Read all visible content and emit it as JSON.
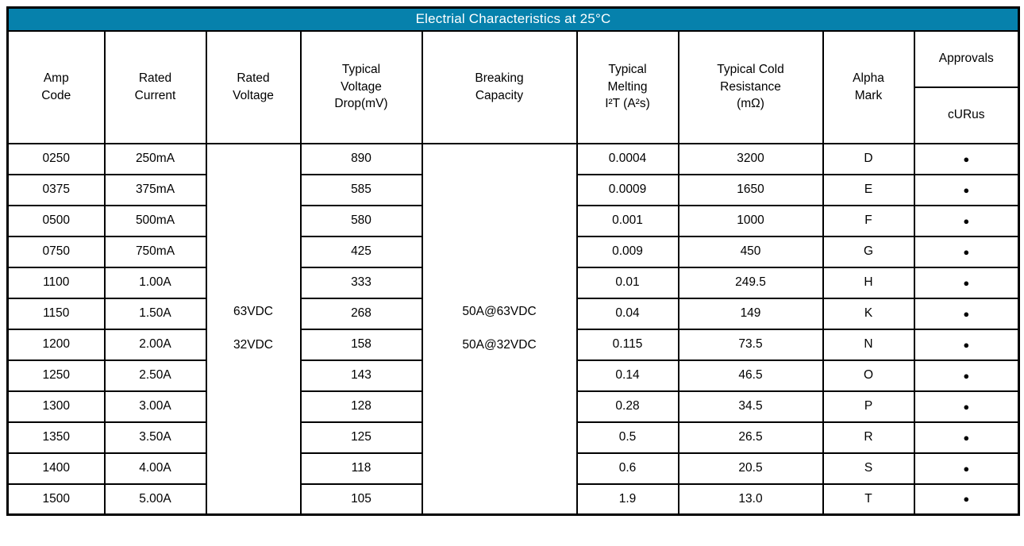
{
  "title": "Electrial Characteristics at 25°C",
  "colors": {
    "title_bar_bg": "#0681AC",
    "title_bar_text": "#FFFFFF",
    "border": "#000000",
    "body_text": "#000000"
  },
  "columns": {
    "amp_code": "Amp\nCode",
    "rated_current": "Rated\nCurrent",
    "rated_voltage": "Rated\nVoltage",
    "voltage_drop": "Typical\nVoltage\nDrop(mV)",
    "breaking_capacity": "Breaking\nCapacity",
    "melting_i2t": "Typical\nMelting\nI²T (A²s)",
    "cold_resistance": "Typical Cold\nResistance\n(mΩ)",
    "alpha_mark": "Alpha\nMark",
    "approvals": "Approvals",
    "curus": "cURus"
  },
  "merged_cells": {
    "rated_voltage": "63VDC\n32VDC",
    "breaking_capacity": "50A@63VDC\n50A@32VDC"
  },
  "approval_bullet_glyph": "●",
  "rows": [
    {
      "amp_code": "0250",
      "rated_current": "250mA",
      "voltage_drop": "890",
      "melting_i2t": "0.0004",
      "cold_resistance": "3200",
      "alpha_mark": "D",
      "curus_approved": true
    },
    {
      "amp_code": "0375",
      "rated_current": "375mA",
      "voltage_drop": "585",
      "melting_i2t": "0.0009",
      "cold_resistance": "1650",
      "alpha_mark": "E",
      "curus_approved": true
    },
    {
      "amp_code": "0500",
      "rated_current": "500mA",
      "voltage_drop": "580",
      "melting_i2t": "0.001",
      "cold_resistance": "1000",
      "alpha_mark": "F",
      "curus_approved": true
    },
    {
      "amp_code": "0750",
      "rated_current": "750mA",
      "voltage_drop": "425",
      "melting_i2t": "0.009",
      "cold_resistance": "450",
      "alpha_mark": "G",
      "curus_approved": true
    },
    {
      "amp_code": "1100",
      "rated_current": "1.00A",
      "voltage_drop": "333",
      "melting_i2t": "0.01",
      "cold_resistance": "249.5",
      "alpha_mark": "H",
      "curus_approved": true
    },
    {
      "amp_code": "1150",
      "rated_current": "1.50A",
      "voltage_drop": "268",
      "melting_i2t": "0.04",
      "cold_resistance": "149",
      "alpha_mark": "K",
      "curus_approved": true
    },
    {
      "amp_code": "1200",
      "rated_current": "2.00A",
      "voltage_drop": "158",
      "melting_i2t": "0.115",
      "cold_resistance": "73.5",
      "alpha_mark": "N",
      "curus_approved": true
    },
    {
      "amp_code": "1250",
      "rated_current": "2.50A",
      "voltage_drop": "143",
      "melting_i2t": "0.14",
      "cold_resistance": "46.5",
      "alpha_mark": "O",
      "curus_approved": true
    },
    {
      "amp_code": "1300",
      "rated_current": "3.00A",
      "voltage_drop": "128",
      "melting_i2t": "0.28",
      "cold_resistance": "34.5",
      "alpha_mark": "P",
      "curus_approved": true
    },
    {
      "amp_code": "1350",
      "rated_current": "3.50A",
      "voltage_drop": "125",
      "melting_i2t": "0.5",
      "cold_resistance": "26.5",
      "alpha_mark": "R",
      "curus_approved": true
    },
    {
      "amp_code": "1400",
      "rated_current": "4.00A",
      "voltage_drop": "118",
      "melting_i2t": "0.6",
      "cold_resistance": "20.5",
      "alpha_mark": "S",
      "curus_approved": true
    },
    {
      "amp_code": "1500",
      "rated_current": "5.00A",
      "voltage_drop": "105",
      "melting_i2t": "1.9",
      "cold_resistance": "13.0",
      "alpha_mark": "T",
      "curus_approved": true
    }
  ]
}
